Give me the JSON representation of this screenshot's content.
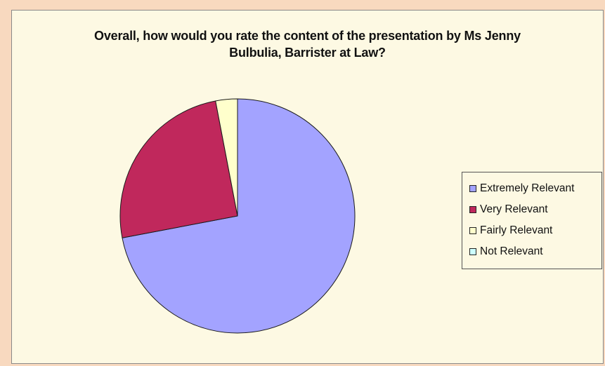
{
  "chart_data": {
    "type": "pie",
    "title_lines": [
      "Overall, how would you rate the content of the presentation by Ms Jenny",
      "Bulbulia, Barrister at Law?"
    ],
    "slices": [
      {
        "label": "Extremely Relevant",
        "value": 72,
        "color": "#a3a3ff"
      },
      {
        "label": "Very Relevant",
        "value": 25,
        "color": "#c0285c"
      },
      {
        "label": "Fairly Relevant",
        "value": 3,
        "color": "#ffffcc"
      },
      {
        "label": "Not Relevant",
        "value": 0,
        "color": "#ccffff"
      }
    ],
    "legend_position": "right"
  }
}
